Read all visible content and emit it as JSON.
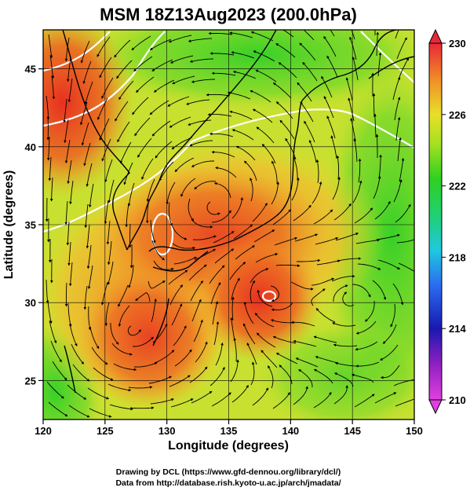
{
  "title": "MSM 18Z13Aug2023 (200.0hPa)",
  "xlabel": "Longitude (degrees)",
  "ylabel": "Latitude  (degrees)",
  "credits": [
    "Drawing by DCL (https://www.gfd-dennou.org/library/dcl/)",
    "Data from http://database.rish.kyoto-u.ac.jp/arch/jmadata/"
  ],
  "map": {
    "lon_range": [
      120,
      150
    ],
    "lat_range": [
      22.5,
      47.5
    ],
    "lon_ticks": [
      "120",
      "125",
      "130",
      "135",
      "140",
      "145",
      "150"
    ],
    "lat_ticks": [
      "25",
      "30",
      "35",
      "40",
      "45"
    ],
    "grid_spacing_deg": 5,
    "field": "temperature (K) with wind streamlines",
    "features": [
      {
        "name": "anticyclone center",
        "lon": 134,
        "lat": 36
      },
      {
        "name": "typhoon warm core",
        "lon": 138,
        "lat": 31
      },
      {
        "name": "cyclonic eddy",
        "lon": 145,
        "lat": 30.3
      },
      {
        "name": "anticyclonic eddy",
        "lon": 127,
        "lat": 28
      }
    ]
  },
  "colorbar": {
    "min": 210,
    "max": 230,
    "tick_labels": [
      "230",
      "226",
      "222",
      "218",
      "214",
      "210"
    ],
    "colors": [
      "#e8283c",
      "#f0822a",
      "#d8dc28",
      "#1ed21e",
      "#1ec8c8",
      "#2048e0",
      "#1010a0",
      "#e040e0"
    ]
  }
}
